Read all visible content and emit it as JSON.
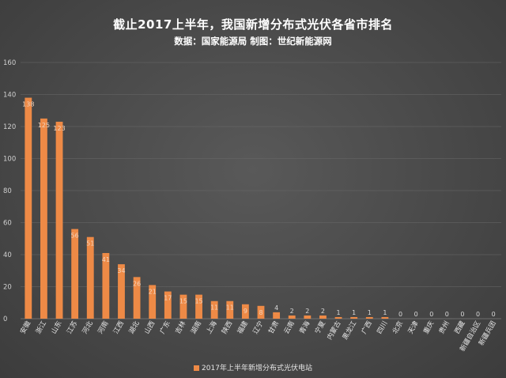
{
  "chart_data": {
    "type": "bar",
    "title": "截止2017上半年，我国新增分布式光伏各省市排名",
    "subtitle": "数据：国家能源局 制图：世纪新能源网",
    "categories": [
      "安徽",
      "浙江",
      "山东",
      "江苏",
      "河北",
      "河南",
      "江西",
      "湖北",
      "山西",
      "广东",
      "吉林",
      "湖南",
      "上海",
      "陕西",
      "福建",
      "辽宁",
      "甘肃",
      "云南",
      "青海",
      "宁夏",
      "内蒙古",
      "黑龙江",
      "广西",
      "四川",
      "北京",
      "天津",
      "重庆",
      "贵州",
      "西藏",
      "新疆自治区",
      "新疆兵团"
    ],
    "series": [
      {
        "name": "2017年上半年新增分布式光伏电站",
        "values": [
          138,
          125,
          123,
          56,
          51,
          41,
          34,
          26,
          21,
          17,
          15,
          15,
          11,
          11,
          9,
          8,
          4,
          2,
          2,
          2,
          1,
          1,
          1,
          1,
          0,
          0,
          0,
          0,
          0,
          0,
          0
        ],
        "color": "#ee8a46"
      }
    ],
    "ylim": [
      0,
      160
    ],
    "yticks": [
      0,
      20,
      40,
      60,
      80,
      100,
      120,
      140,
      160
    ],
    "xlabel": "",
    "ylabel": "",
    "grid": true,
    "legend_position": "bottom"
  }
}
